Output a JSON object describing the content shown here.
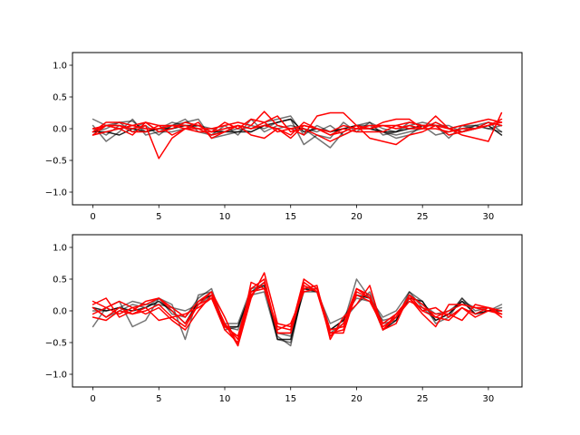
{
  "chart_data": [
    {
      "type": "line",
      "grid": false,
      "xlim": [
        -1.55,
        32.55
      ],
      "ylim": [
        -1.2,
        1.2
      ],
      "xticks": [
        0,
        5,
        10,
        15,
        20,
        25,
        30
      ],
      "yticks": [
        -1.0,
        -0.5,
        0.0,
        0.5,
        1.0
      ],
      "xtick_labels": [
        "0",
        "5",
        "10",
        "15",
        "20",
        "25",
        "30"
      ],
      "ytick_labels": [
        "−1.0",
        "−0.5",
        "0.0",
        "0.5",
        "1.0"
      ],
      "x": [
        0,
        1,
        2,
        3,
        4,
        5,
        6,
        7,
        8,
        9,
        10,
        11,
        12,
        13,
        14,
        15,
        16,
        17,
        18,
        19,
        20,
        21,
        22,
        23,
        24,
        25,
        26,
        27,
        28,
        29,
        30,
        31
      ],
      "series": [
        {
          "color": "#000000",
          "alpha": 0.55,
          "values": [
            0.15,
            0.05,
            0.1,
            0.12,
            -0.05,
            0.0,
            0.1,
            0.05,
            0.0,
            -0.1,
            -0.05,
            0.05,
            0.0,
            0.1,
            0.15,
            0.2,
            -0.1,
            0.05,
            -0.05,
            0.0,
            0.05,
            0.1,
            0.0,
            -0.05,
            0.05,
            0.1,
            0.05,
            -0.15,
            0.05,
            0.0,
            0.1,
            0.05
          ]
        },
        {
          "color": "#000000",
          "alpha": 0.55,
          "values": [
            0.05,
            -0.2,
            -0.05,
            0.15,
            -0.1,
            -0.05,
            0.05,
            0.1,
            0.15,
            -0.15,
            -0.1,
            -0.05,
            0.05,
            0.0,
            0.1,
            0.15,
            -0.25,
            -0.1,
            -0.15,
            0.1,
            -0.05,
            0.1,
            -0.1,
            -0.05,
            0.1,
            0.05,
            -0.1,
            -0.05,
            0.0,
            0.05,
            0.1,
            -0.05
          ]
        },
        {
          "color": "#000000",
          "alpha": 0.55,
          "values": [
            -0.05,
            0.0,
            0.1,
            -0.05,
            0.05,
            -0.1,
            0.05,
            0.15,
            -0.05,
            -0.1,
            0.05,
            -0.1,
            0.15,
            -0.05,
            0.05,
            0.0,
            0.0,
            -0.15,
            -0.3,
            -0.05,
            0.05,
            0.05,
            -0.05,
            -0.15,
            -0.1,
            0.05,
            0.05,
            0.05,
            -0.05,
            0.05,
            0.0,
            0.05
          ]
        },
        {
          "color": "#000000",
          "alpha": 0.55,
          "values": [
            0.0,
            -0.1,
            0.05,
            0.0,
            0.1,
            -0.05,
            -0.05,
            0.0,
            0.05,
            0.0,
            -0.05,
            0.0,
            -0.05,
            0.05,
            0.0,
            0.05,
            0.0,
            -0.05,
            0.05,
            -0.1,
            0.0,
            0.0,
            -0.05,
            -0.1,
            -0.05,
            0.0,
            0.1,
            0.0,
            0.05,
            0.05,
            0.0,
            -0.05
          ]
        },
        {
          "color": "#000000",
          "alpha": 0.85,
          "values": [
            -0.05,
            -0.05,
            -0.1,
            0.0,
            -0.05,
            0.0,
            0.0,
            0.05,
            0.05,
            -0.05,
            -0.05,
            -0.05,
            -0.05,
            0.05,
            0.1,
            0.15,
            -0.05,
            0.0,
            -0.05,
            0.0,
            0.05,
            0.0,
            -0.05,
            -0.05,
            0.0,
            0.05,
            0.05,
            0.0,
            -0.05,
            0.0,
            0.05,
            -0.1
          ]
        },
        {
          "color": "#ff0000",
          "alpha": 1.0,
          "values": [
            -0.05,
            0.05,
            0.05,
            0.0,
            0.05,
            -0.47,
            -0.15,
            0.0,
            0.0,
            -0.1,
            -0.05,
            0.05,
            0.0,
            0.1,
            -0.05,
            0.0,
            -0.1,
            0.2,
            0.25,
            0.25,
            0.05,
            0.0,
            0.05,
            0.0,
            0.05,
            0.0,
            0.0,
            -0.05,
            0.0,
            0.0,
            0.05,
            0.1
          ]
        },
        {
          "color": "#ff0000",
          "alpha": 1.0,
          "values": [
            0.0,
            0.05,
            0.0,
            0.05,
            0.0,
            0.0,
            0.05,
            0.05,
            0.0,
            0.0,
            0.05,
            0.1,
            0.05,
            0.27,
            0.05,
            0.0,
            0.05,
            0.0,
            -0.05,
            0.05,
            0.0,
            0.0,
            0.1,
            0.15,
            0.15,
            0.0,
            0.2,
            0.0,
            0.05,
            0.1,
            0.15,
            0.1
          ]
        },
        {
          "color": "#ff0000",
          "alpha": 1.0,
          "values": [
            -0.1,
            0.05,
            0.05,
            -0.05,
            -0.05,
            0.05,
            0.05,
            0.0,
            -0.05,
            -0.05,
            0.0,
            0.05,
            -0.1,
            -0.15,
            0.0,
            -0.1,
            0.1,
            0.0,
            -0.1,
            0.0,
            -0.05,
            -0.05,
            -0.05,
            0.05,
            0.1,
            0.05,
            0.05,
            -0.1,
            -0.05,
            0.0,
            0.05,
            0.15
          ]
        },
        {
          "color": "#ff0000",
          "alpha": 1.0,
          "values": [
            -0.05,
            0.1,
            0.1,
            0.05,
            0.1,
            -0.05,
            0.0,
            0.1,
            0.05,
            -0.05,
            0.1,
            0.0,
            0.15,
            0.1,
            0.2,
            -0.05,
            0.0,
            -0.1,
            -0.2,
            -0.1,
            0.0,
            0.05,
            0.05,
            0.05,
            0.0,
            0.0,
            0.1,
            0.0,
            -0.05,
            0.0,
            0.1,
            0.05
          ]
        },
        {
          "color": "#ff0000",
          "alpha": 1.0,
          "values": [
            -0.1,
            -0.05,
            0.0,
            -0.1,
            0.1,
            0.05,
            -0.1,
            0.0,
            0.1,
            -0.15,
            -0.05,
            0.05,
            0.0,
            0.05,
            0.0,
            -0.15,
            0.05,
            0.0,
            -0.1,
            -0.05,
            0.05,
            -0.15,
            -0.2,
            -0.25,
            -0.1,
            -0.05,
            0.05,
            0.0,
            -0.1,
            -0.15,
            -0.2,
            0.25
          ]
        }
      ]
    },
    {
      "type": "line",
      "grid": false,
      "xlim": [
        -1.55,
        32.55
      ],
      "ylim": [
        -1.2,
        1.2
      ],
      "xticks": [
        0,
        5,
        10,
        15,
        20,
        25,
        30
      ],
      "yticks": [
        -1.0,
        -0.5,
        0.0,
        0.5,
        1.0
      ],
      "xtick_labels": [
        "0",
        "5",
        "10",
        "15",
        "20",
        "25",
        "30"
      ],
      "ytick_labels": [
        "−1.0",
        "−0.5",
        "0.0",
        "0.5",
        "1.0"
      ],
      "x": [
        0,
        1,
        2,
        3,
        4,
        5,
        6,
        7,
        8,
        9,
        10,
        11,
        12,
        13,
        14,
        15,
        16,
        17,
        18,
        19,
        20,
        21,
        22,
        23,
        24,
        25,
        26,
        27,
        28,
        29,
        30,
        31
      ],
      "series": [
        {
          "color": "#000000",
          "alpha": 0.55,
          "values": [
            -0.25,
            0.05,
            0.15,
            -0.25,
            -0.15,
            0.2,
            0.1,
            -0.45,
            0.25,
            0.3,
            -0.3,
            -0.25,
            0.3,
            0.45,
            -0.4,
            -0.55,
            0.4,
            0.3,
            -0.35,
            -0.2,
            0.5,
            0.2,
            -0.1,
            0.0,
            0.3,
            0.05,
            -0.15,
            -0.05,
            0.2,
            -0.05,
            0.0,
            0.1
          ]
        },
        {
          "color": "#000000",
          "alpha": 0.55,
          "values": [
            0.05,
            -0.1,
            0.0,
            0.1,
            0.05,
            0.2,
            -0.05,
            -0.1,
            0.2,
            0.35,
            -0.25,
            -0.3,
            0.25,
            0.3,
            -0.45,
            -0.5,
            0.35,
            0.35,
            -0.3,
            -0.15,
            0.1,
            0.3,
            -0.2,
            -0.15,
            0.3,
            0.15,
            -0.2,
            -0.1,
            0.2,
            0.0,
            0.05,
            0.0
          ]
        },
        {
          "color": "#000000",
          "alpha": 0.55,
          "values": [
            0.0,
            0.0,
            0.05,
            0.15,
            0.1,
            0.1,
            0.05,
            0.0,
            0.1,
            0.25,
            -0.2,
            -0.2,
            0.35,
            0.4,
            -0.35,
            -0.4,
            0.3,
            0.3,
            -0.2,
            -0.1,
            0.2,
            0.15,
            -0.15,
            -0.1,
            0.25,
            0.1,
            -0.05,
            0.0,
            0.15,
            0.05,
            0.0,
            0.05
          ]
        },
        {
          "color": "#000000",
          "alpha": 0.85,
          "values": [
            0.05,
            0.0,
            0.05,
            0.0,
            0.05,
            0.15,
            0.0,
            -0.2,
            0.15,
            0.25,
            -0.25,
            -0.25,
            0.3,
            0.4,
            -0.45,
            -0.45,
            0.35,
            0.3,
            -0.3,
            -0.15,
            0.25,
            0.2,
            -0.3,
            -0.15,
            0.2,
            0.15,
            -0.15,
            -0.05,
            0.15,
            -0.05,
            0.0,
            0.0
          ]
        },
        {
          "color": "#ff0000",
          "alpha": 1.0,
          "values": [
            0.1,
            0.2,
            -0.1,
            0.0,
            0.15,
            0.2,
            0.0,
            -0.2,
            0.1,
            0.3,
            -0.1,
            -0.55,
            0.2,
            0.6,
            -0.2,
            -0.25,
            0.35,
            0.4,
            -0.45,
            -0.1,
            0.1,
            0.4,
            -0.3,
            -0.1,
            0.25,
            0.0,
            0.05,
            -0.1,
            0.05,
            -0.05,
            0.05,
            -0.05
          ]
        },
        {
          "color": "#ff0000",
          "alpha": 1.0,
          "values": [
            -0.05,
            0.05,
            0.15,
            0.05,
            -0.05,
            0.05,
            -0.15,
            -0.3,
            0.0,
            0.25,
            -0.2,
            -0.55,
            0.45,
            0.35,
            -0.25,
            -0.3,
            0.5,
            0.35,
            -0.35,
            -0.35,
            0.3,
            0.2,
            -0.2,
            -0.05,
            0.2,
            -0.05,
            -0.25,
            0.1,
            0.1,
            0.05,
            0.0,
            -0.05
          ]
        },
        {
          "color": "#ff0000",
          "alpha": 1.0,
          "values": [
            0.15,
            0.05,
            -0.05,
            0.05,
            0.1,
            0.2,
            0.05,
            -0.1,
            0.15,
            0.3,
            -0.25,
            -0.4,
            0.35,
            0.5,
            -0.35,
            -0.35,
            0.4,
            0.3,
            -0.4,
            -0.2,
            0.35,
            0.2,
            -0.3,
            -0.2,
            0.25,
            0.1,
            -0.1,
            0.0,
            0.1,
            0.05,
            0.05,
            0.0
          ]
        },
        {
          "color": "#ff0000",
          "alpha": 1.0,
          "values": [
            -0.1,
            -0.15,
            0.0,
            -0.05,
            0.05,
            -0.15,
            -0.1,
            -0.05,
            0.05,
            0.2,
            -0.3,
            -0.5,
            0.25,
            0.45,
            -0.35,
            -0.35,
            0.45,
            0.3,
            -0.35,
            -0.3,
            0.35,
            0.25,
            -0.3,
            -0.05,
            0.2,
            0.0,
            -0.1,
            -0.15,
            0.05,
            -0.1,
            0.0,
            -0.05
          ]
        },
        {
          "color": "#ff0000",
          "alpha": 1.0,
          "values": [
            0.05,
            -0.1,
            0.05,
            -0.05,
            0.0,
            0.1,
            -0.1,
            -0.25,
            0.1,
            0.2,
            -0.2,
            -0.45,
            0.3,
            0.35,
            -0.3,
            -0.2,
            0.3,
            0.35,
            -0.3,
            -0.25,
            0.25,
            0.15,
            -0.25,
            -0.1,
            0.15,
            0.05,
            -0.05,
            -0.05,
            -0.15,
            0.1,
            0.05,
            -0.1
          ]
        }
      ]
    }
  ]
}
